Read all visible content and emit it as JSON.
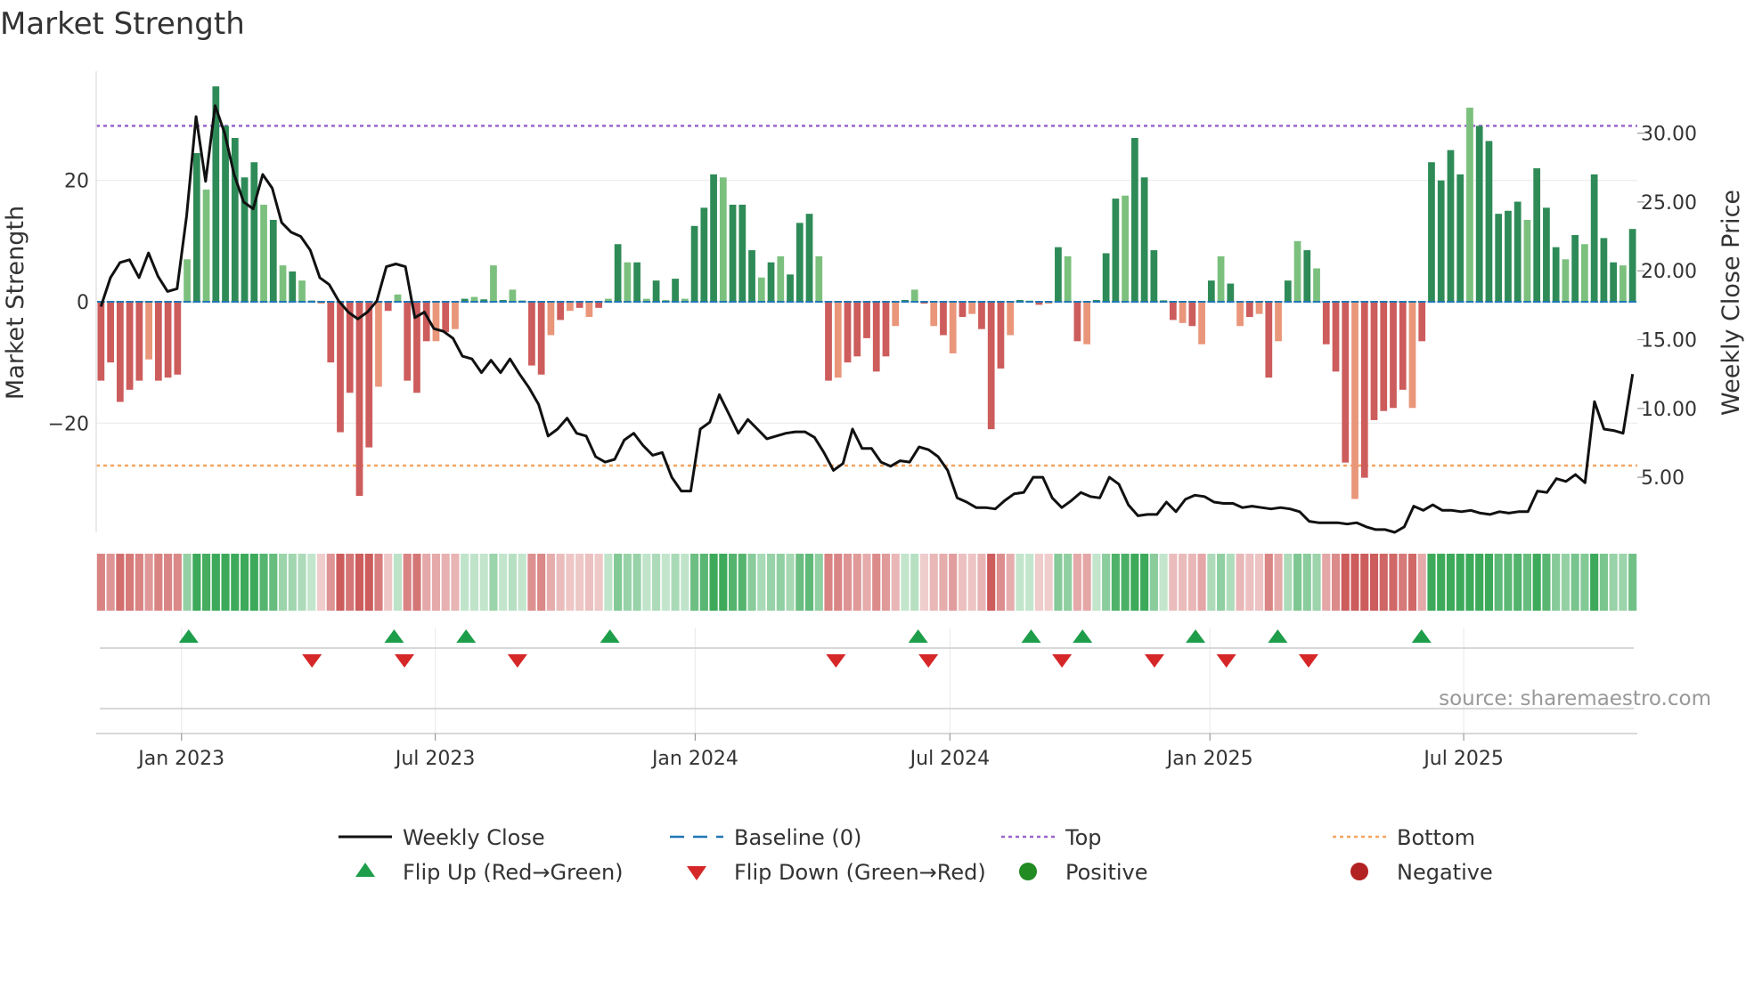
{
  "chart_data": {
    "type": "bar",
    "title": "Market Strength",
    "ylabel_left": "Market Strength",
    "ylabel_right": "Weekly Close Price",
    "source": "source: sharemaestro.com",
    "strength_ylim": [
      -38,
      38
    ],
    "strength_ticks": [
      {
        "value": 20,
        "label": "20"
      },
      {
        "value": 0,
        "label": "0"
      },
      {
        "value": -20,
        "label": "−20"
      }
    ],
    "price_ylim": [
      1.0,
      34.5
    ],
    "price_ticks": [
      {
        "value": 30,
        "label": "30.00"
      },
      {
        "value": 25,
        "label": "25.00"
      },
      {
        "value": 20,
        "label": "20.00"
      },
      {
        "value": 15,
        "label": "15.00"
      },
      {
        "value": 10,
        "label": "10.00"
      },
      {
        "value": 5,
        "label": "5.00"
      }
    ],
    "top_level": 29,
    "bottom_level": -27,
    "x_range": [
      0,
      150
    ],
    "x_ticks": [
      {
        "week": 8.3,
        "label": "Jan 2023"
      },
      {
        "week": 33,
        "label": "Jul 2023"
      },
      {
        "week": 58.3,
        "label": "Jan 2024"
      },
      {
        "week": 83.1,
        "label": "Jul 2024"
      },
      {
        "week": 108.4,
        "label": "Jan 2025"
      },
      {
        "week": 133.1,
        "label": "Jul 2025"
      }
    ],
    "strength": [
      -13,
      -10,
      -16.5,
      -14.5,
      -13,
      -9.5,
      -13,
      -12.5,
      -12,
      7,
      24.5,
      18.5,
      35.5,
      29,
      27,
      20.5,
      23,
      16,
      13.5,
      6,
      5,
      3.5,
      0.2,
      -0.3,
      -10,
      -21.5,
      -15,
      -32,
      -24,
      -14,
      -1.5,
      1.2,
      -13,
      -15,
      -6.5,
      -6.5,
      -5,
      -4.5,
      0.5,
      0.8,
      0.4,
      6,
      0.3,
      2,
      0.2,
      -10.5,
      -12,
      -5.5,
      -3,
      -1.5,
      -1,
      -2.5,
      -1,
      0.5,
      9.5,
      6.5,
      6.5,
      0.5,
      3.5,
      0.3,
      3.8,
      0.5,
      12.5,
      15.5,
      21,
      20.5,
      16,
      16,
      8.5,
      4,
      6.5,
      7.5,
      4.5,
      13,
      14.5,
      7.5,
      -13,
      -12.5,
      -10,
      -9,
      -6,
      -11.5,
      -9,
      -4,
      0.3,
      2,
      -0.3,
      -4,
      -5.5,
      -8.5,
      -2.5,
      -2,
      -4.5,
      -21,
      -11,
      -5.5,
      0.3,
      0.2,
      -0.5,
      -0.3,
      9,
      7.5,
      -6.5,
      -7,
      0.3,
      8,
      17,
      17.5,
      27,
      20.5,
      8.5,
      0.3,
      -3,
      -3.5,
      -4,
      -7,
      3.5,
      7.5,
      3,
      -4,
      -2.5,
      -2,
      -12.5,
      -6.5,
      3.5,
      10,
      8.5,
      5.5,
      -7,
      -11.5,
      -26.5,
      -32.5,
      -29,
      -19.5,
      -18,
      -17.5,
      -14.5,
      -17.5,
      -6.5,
      23,
      20,
      25,
      21,
      32,
      29,
      26.5,
      14.5,
      15,
      16.5,
      13.5,
      22,
      15.5,
      9,
      7,
      11,
      9.5,
      21,
      10.5,
      6.5,
      6,
      12
    ],
    "close_price": [
      17.4,
      19.5,
      20.6,
      20.8,
      19.5,
      21.3,
      19.6,
      18.5,
      18.7,
      24.0,
      31.2,
      26.5,
      32.0,
      30.0,
      27.0,
      25.0,
      24.5,
      27.0,
      26.0,
      23.5,
      22.8,
      22.5,
      21.5,
      19.5,
      19.0,
      17.8,
      17.0,
      16.5,
      17.0,
      17.8,
      20.3,
      20.5,
      20.3,
      16.6,
      17.0,
      15.8,
      15.6,
      15.1,
      13.8,
      13.6,
      12.6,
      13.5,
      12.6,
      13.6,
      12.5,
      11.5,
      10.3,
      8.0,
      8.5,
      9.3,
      8.2,
      8.0,
      6.5,
      6.1,
      6.3,
      7.7,
      8.2,
      7.3,
      6.6,
      6.8,
      5.0,
      4.0,
      4.0,
      8.5,
      9.0,
      11.0,
      9.6,
      8.2,
      9.2,
      8.5,
      7.8,
      8.0,
      8.2,
      8.3,
      8.3,
      7.9,
      6.8,
      5.5,
      6.0,
      8.5,
      7.1,
      7.1,
      6.1,
      5.8,
      6.2,
      6.1,
      7.2,
      7.0,
      6.5,
      5.5,
      3.5,
      3.2,
      2.8,
      2.8,
      2.7,
      3.3,
      3.8,
      3.9,
      5.0,
      5.0,
      3.5,
      2.8,
      3.3,
      3.9,
      3.6,
      3.5,
      5.0,
      4.5,
      3.0,
      2.2,
      2.3,
      2.3,
      3.2,
      2.5,
      3.4,
      3.7,
      3.6,
      3.2,
      3.1,
      3.1,
      2.8,
      2.9,
      2.8,
      2.7,
      2.8,
      2.7,
      2.5,
      1.8,
      1.7,
      1.7,
      1.7,
      1.6,
      1.7,
      1.4,
      1.2,
      1.2,
      1.0,
      1.4,
      2.9,
      2.6,
      3.0,
      2.6,
      2.6,
      2.5,
      2.6,
      2.4,
      2.3,
      2.5,
      2.4,
      2.5,
      2.5,
      4.0,
      3.9,
      4.9,
      4.7,
      5.2,
      4.6,
      10.5,
      8.5,
      8.4,
      8.2,
      12.5
    ],
    "flip_up_weeks": [
      9,
      29,
      36,
      50,
      80,
      91,
      96,
      107,
      115,
      129
    ],
    "flip_down_weeks": [
      21,
      30,
      41,
      72,
      81,
      94,
      103,
      110,
      118
    ],
    "legend": [
      {
        "label": "Weekly Close",
        "symbol": "line"
      },
      {
        "label": "Baseline (0)",
        "symbol": "dash"
      },
      {
        "label": "Top",
        "symbol": "dotted-purple"
      },
      {
        "label": "Bottom",
        "symbol": "dotted-orange"
      },
      {
        "label": "Flip Up (Red→Green)",
        "symbol": "triangle-up"
      },
      {
        "label": "Flip Down (Green→Red)",
        "symbol": "triangle-down"
      },
      {
        "label": "Positive",
        "symbol": "circle-green"
      },
      {
        "label": "Negative",
        "symbol": "circle-red"
      }
    ],
    "colors": {
      "pos_strong": "#2e8b57",
      "pos_light": "#7cc07e",
      "neg_strong": "#cd5c5c",
      "neg_light": "#e9967a",
      "price_line": "#111111",
      "baseline": "#1f77b4",
      "top_line": "#9966cc",
      "bottom_line": "#f4a460",
      "flip_up": "#1e9e4a",
      "flip_down": "#d62728",
      "positive_dot": "#228b22",
      "negative_dot": "#b22222"
    }
  }
}
